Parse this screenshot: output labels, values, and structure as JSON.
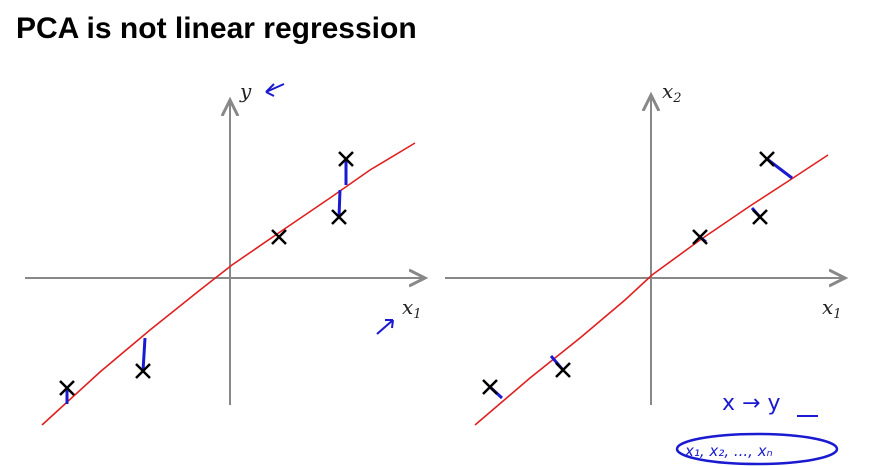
{
  "title": "PCA is not linear regression",
  "left_plot": {
    "y_label": "y",
    "x_label": "x",
    "x_sub": "1"
  },
  "right_plot": {
    "y_label": "x",
    "y_sub": "2",
    "x_label": "x",
    "x_sub": "1"
  },
  "annotations": {
    "mapping": "x → y",
    "features": "x₁, x₂, ..., xₙ"
  },
  "colors": {
    "fit_line": "#e02020",
    "error_segments": "#1a1ad0",
    "axes": "#888888"
  }
}
